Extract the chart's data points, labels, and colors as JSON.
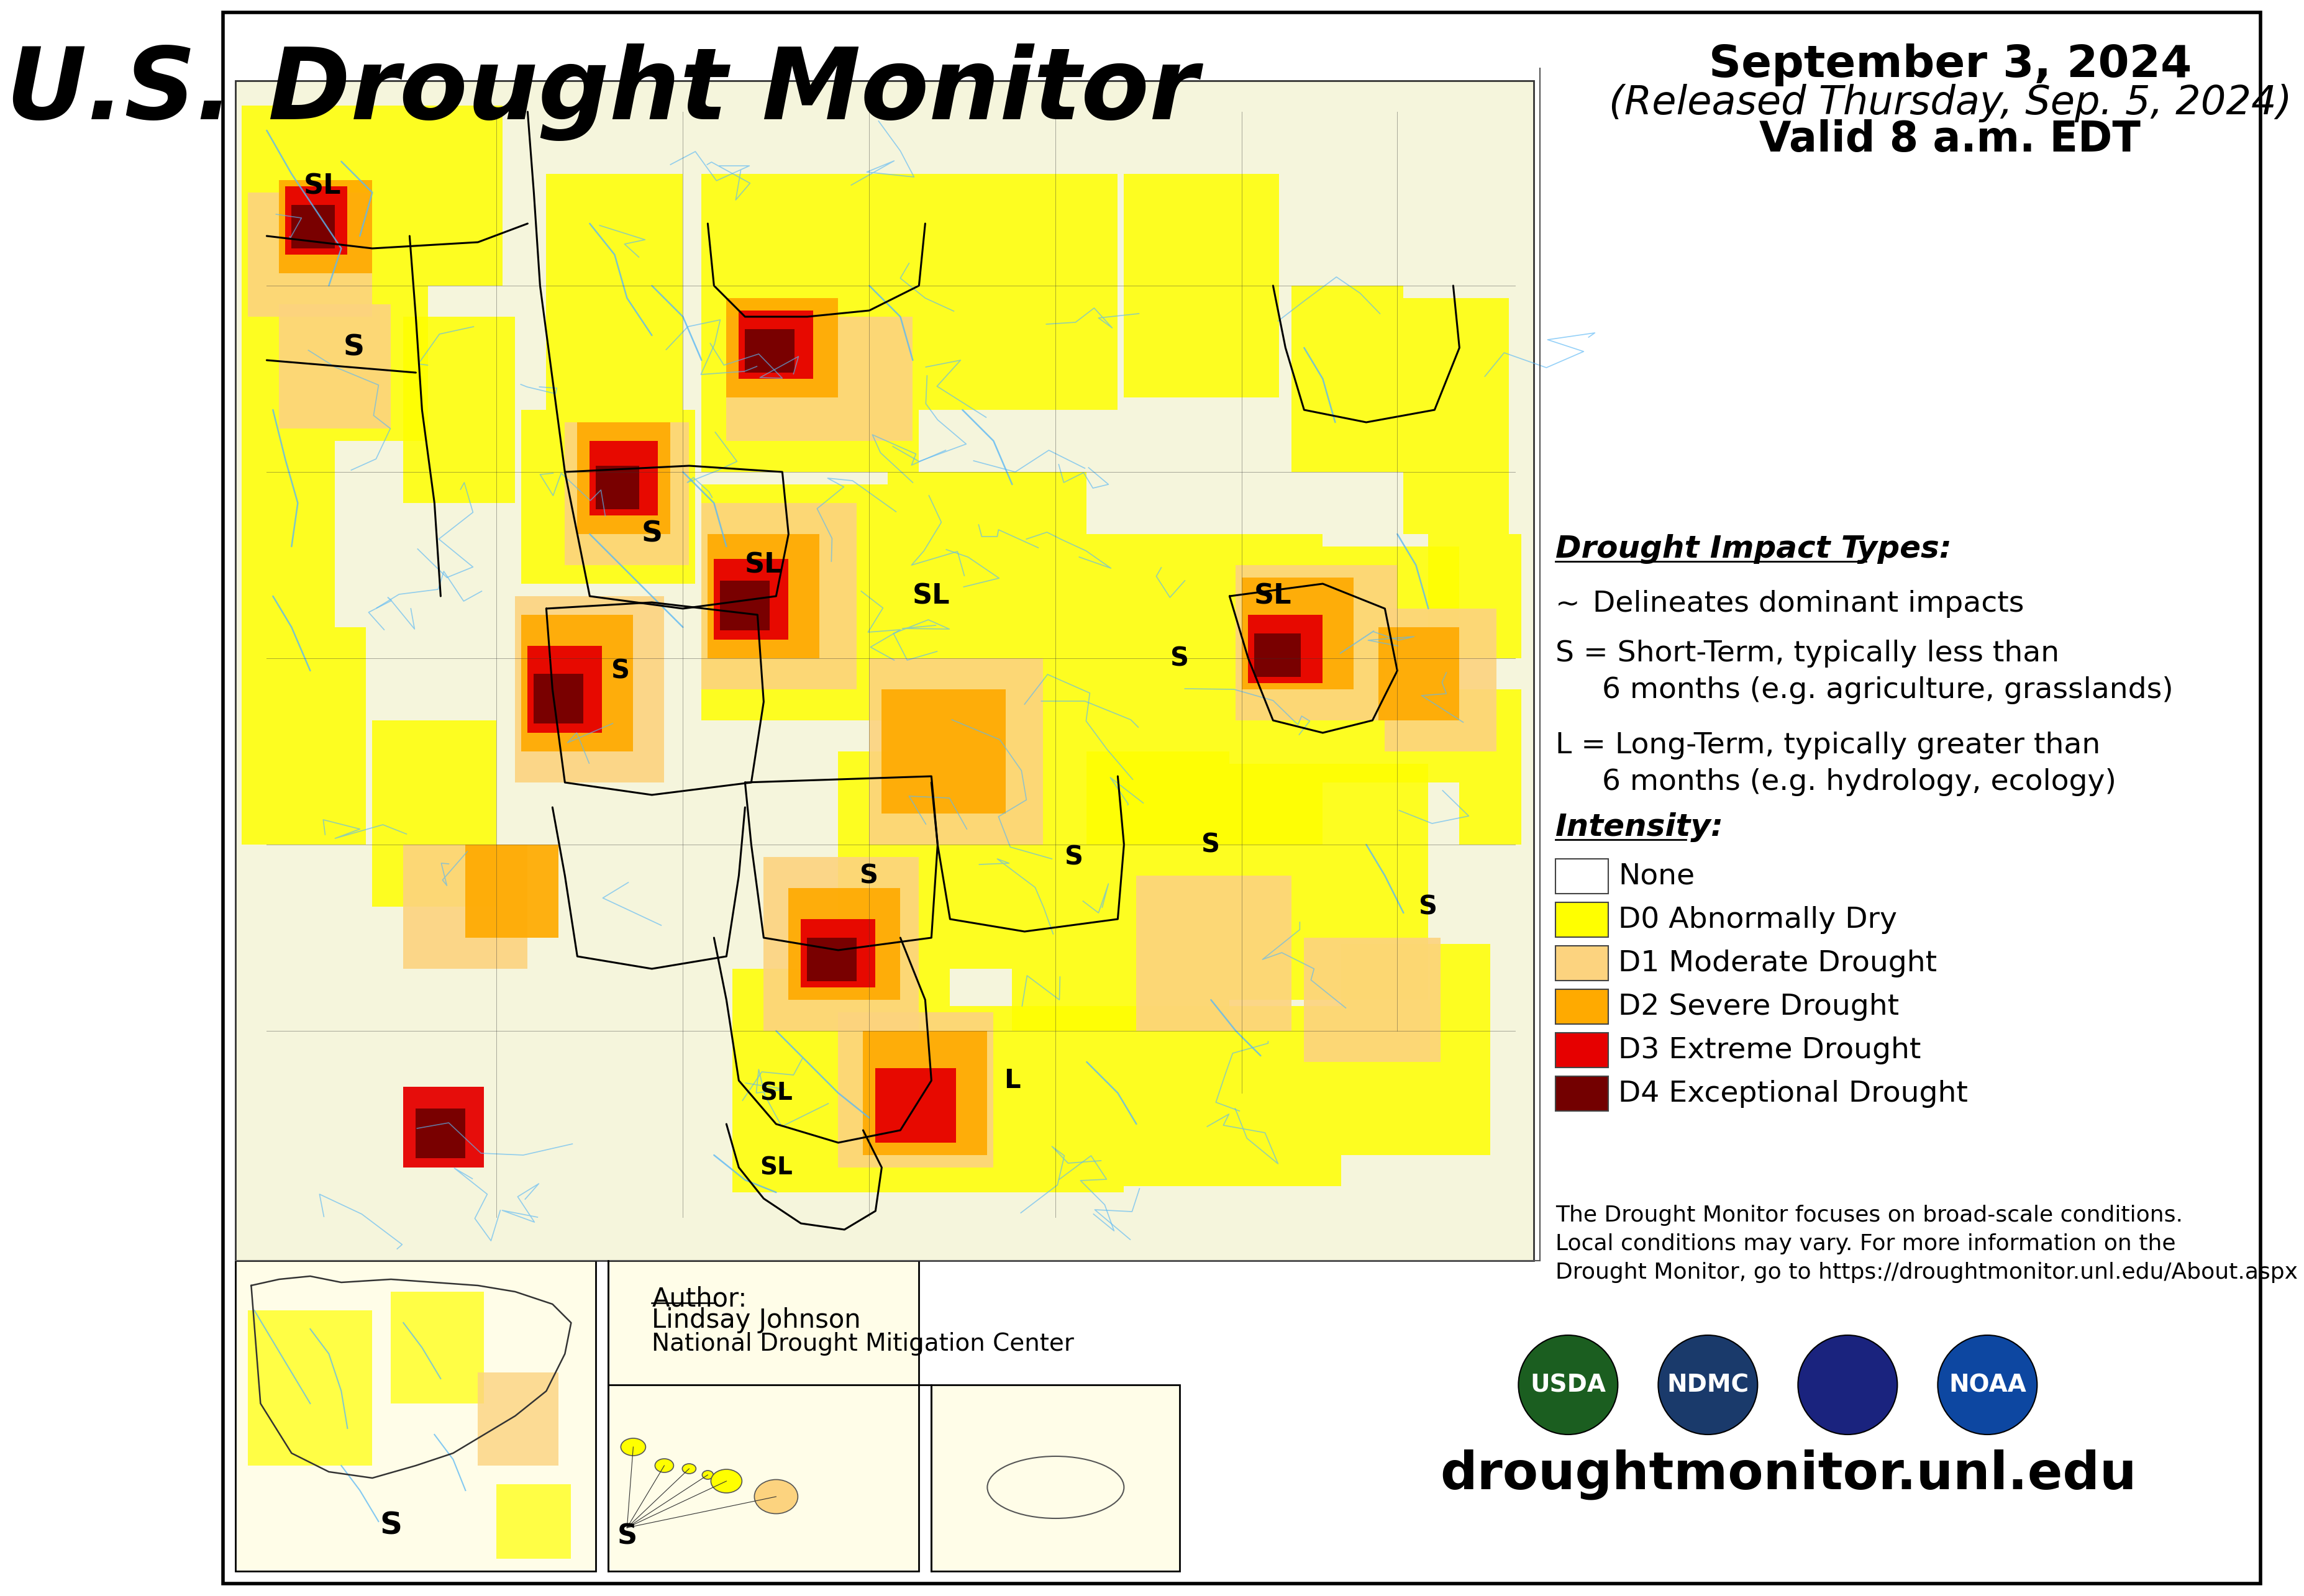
{
  "title": "U.S. Drought Monitor",
  "date_line1": "September 3, 2024",
  "date_line2": "(Released Thursday, Sep. 5, 2024)",
  "date_line3": "Valid 8 a.m. EDT",
  "author_label": "Author:",
  "author_name": "Lindsay Johnson",
  "author_org": "National Drought Mitigation Center",
  "website": "droughtmonitor.unl.edu",
  "footnote": "The Drought Monitor focuses on broad-scale conditions.\nLocal conditions may vary. For more information on the\nDrought Monitor, go to https://droughtmonitor.unl.edu/About.aspx",
  "legend_title": "Drought Impact Types:",
  "intensity_title": "Intensity:",
  "intensity_items": [
    {
      "label": "None",
      "color": "#FFFFFF"
    },
    {
      "label": "D0 Abnormally Dry",
      "color": "#FFFF00"
    },
    {
      "label": "D1 Moderate Drought",
      "color": "#FCD37F"
    },
    {
      "label": "D2 Severe Drought",
      "color": "#FFAA00"
    },
    {
      "label": "D3 Extreme Drought",
      "color": "#E60000"
    },
    {
      "label": "D4 Exceptional Drought",
      "color": "#730000"
    }
  ],
  "bg_color": "#FFFFFF",
  "title_color": "#000000",
  "title_fontsize": 115,
  "date_fontsize": 52,
  "legend_fontsize": 34,
  "footnote_fontsize": 26,
  "website_fontsize": 60
}
